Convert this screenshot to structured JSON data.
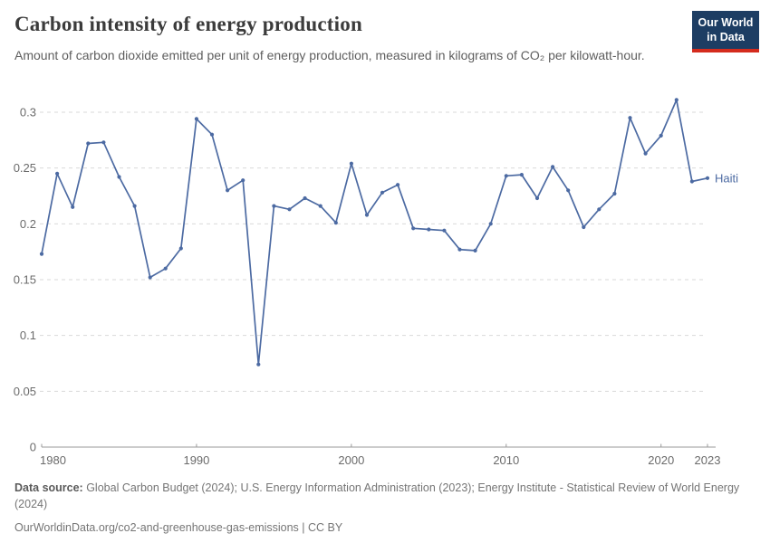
{
  "header": {
    "title": "Carbon intensity of energy production",
    "subtitle": "Amount of carbon dioxide emitted per unit of energy production, measured in kilograms of CO₂ per kilowatt-hour.",
    "logo": {
      "line1": "Our World",
      "line2": "in Data",
      "bg_color": "#1d3d63",
      "stripe_color": "#d42b1d"
    }
  },
  "chart_data": {
    "type": "line",
    "title": "Carbon intensity of energy production",
    "ylabel": "kilograms of CO₂ per kilowatt-hour",
    "x_domain": [
      1980,
      2023
    ],
    "y_domain": [
      0,
      0.3
    ],
    "grid": "horizontal-dashed",
    "legend_position": "end-of-line",
    "x": [
      1980,
      1981,
      1982,
      1983,
      1984,
      1985,
      1986,
      1987,
      1988,
      1989,
      1990,
      1991,
      1992,
      1993,
      1994,
      1995,
      1996,
      1997,
      1998,
      1999,
      2000,
      2001,
      2002,
      2003,
      2004,
      2005,
      2006,
      2007,
      2008,
      2009,
      2010,
      2011,
      2012,
      2013,
      2014,
      2015,
      2016,
      2017,
      2018,
      2019,
      2020,
      2021,
      2022,
      2023
    ],
    "series": [
      {
        "name": "Haiti",
        "color": "#4c6aa2",
        "values": [
          0.173,
          0.245,
          0.215,
          0.272,
          0.273,
          0.242,
          0.216,
          0.152,
          0.16,
          0.178,
          0.294,
          0.28,
          0.23,
          0.239,
          0.074,
          0.216,
          0.213,
          0.223,
          0.216,
          0.201,
          0.254,
          0.208,
          0.228,
          0.235,
          0.196,
          0.195,
          0.194,
          0.177,
          0.176,
          0.2,
          0.243,
          0.244,
          0.223,
          0.251,
          0.23,
          0.197,
          0.213,
          0.227,
          0.295,
          0.263,
          0.279,
          0.311,
          0.238,
          0.241
        ]
      }
    ],
    "y_ticks": [
      {
        "v": 0,
        "label": "0"
      },
      {
        "v": 0.05,
        "label": "0.05"
      },
      {
        "v": 0.1,
        "label": "0.1"
      },
      {
        "v": 0.15,
        "label": "0.15"
      },
      {
        "v": 0.2,
        "label": "0.2"
      },
      {
        "v": 0.25,
        "label": "0.25"
      },
      {
        "v": 0.3,
        "label": "0.3"
      }
    ],
    "x_ticks": [
      {
        "v": 1980,
        "label": "1980"
      },
      {
        "v": 1990,
        "label": "1990"
      },
      {
        "v": 2000,
        "label": "2000"
      },
      {
        "v": 2010,
        "label": "2010"
      },
      {
        "v": 2020,
        "label": "2020"
      },
      {
        "v": 2023,
        "label": "2023"
      }
    ],
    "colors": {
      "gridline": "#dadada",
      "axis": "#999999",
      "tick_label": "#6b6b6b"
    }
  },
  "footer": {
    "source_label": "Data source:",
    "source_text": " Global Carbon Budget (2024); U.S. Energy Information Administration (2023); Energy Institute - Statistical Review of World Energy (2024)",
    "url": "OurWorldinData.org/co2-and-greenhouse-gas-emissions",
    "license": " | CC BY"
  }
}
